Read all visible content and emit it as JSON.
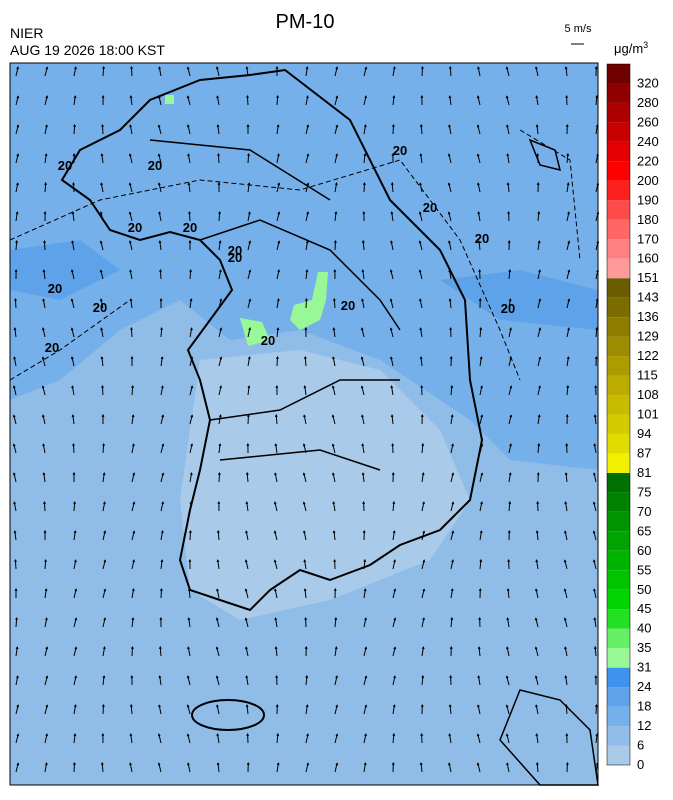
{
  "header": {
    "title": "PM-10",
    "agency": "NIER",
    "timestamp": "AUG 19 2026 18:00 KST",
    "wind_scale": "5 m/s",
    "unit": "μg/m",
    "unit_power": "3"
  },
  "map": {
    "contour_labels": [
      "20",
      "20",
      "20",
      "20",
      "20",
      "20",
      "20",
      "20",
      "20",
      "20",
      "20",
      "20",
      "20",
      "20",
      "20"
    ]
  },
  "legend": {
    "levels": [
      "0",
      "6",
      "12",
      "18",
      "24",
      "31",
      "35",
      "40",
      "45",
      "50",
      "55",
      "60",
      "65",
      "70",
      "75",
      "81",
      "87",
      "94",
      "101",
      "108",
      "115",
      "122",
      "129",
      "136",
      "143",
      "151",
      "160",
      "170",
      "180",
      "190",
      "200",
      "220",
      "240",
      "260",
      "280",
      "320"
    ],
    "colors": [
      "#a9cbe9",
      "#8fbde8",
      "#76b0ea",
      "#5ea3ea",
      "#3f92ee",
      "#98f898",
      "#66f066",
      "#22e022",
      "#00d400",
      "#00c400",
      "#00b400",
      "#00a400",
      "#009400",
      "#008400",
      "#007000",
      "#f0f000",
      "#e0dc00",
      "#d4cc00",
      "#c8bc00",
      "#bcac00",
      "#ac9c00",
      "#9c8c00",
      "#8c7c00",
      "#7c6c00",
      "#6c5c00",
      "#ff9a9a",
      "#ff8080",
      "#ff6666",
      "#ff4a4a",
      "#ff2020",
      "#ff0000",
      "#e40000",
      "#c80000",
      "#ac0000",
      "#900000",
      "#700000"
    ]
  }
}
